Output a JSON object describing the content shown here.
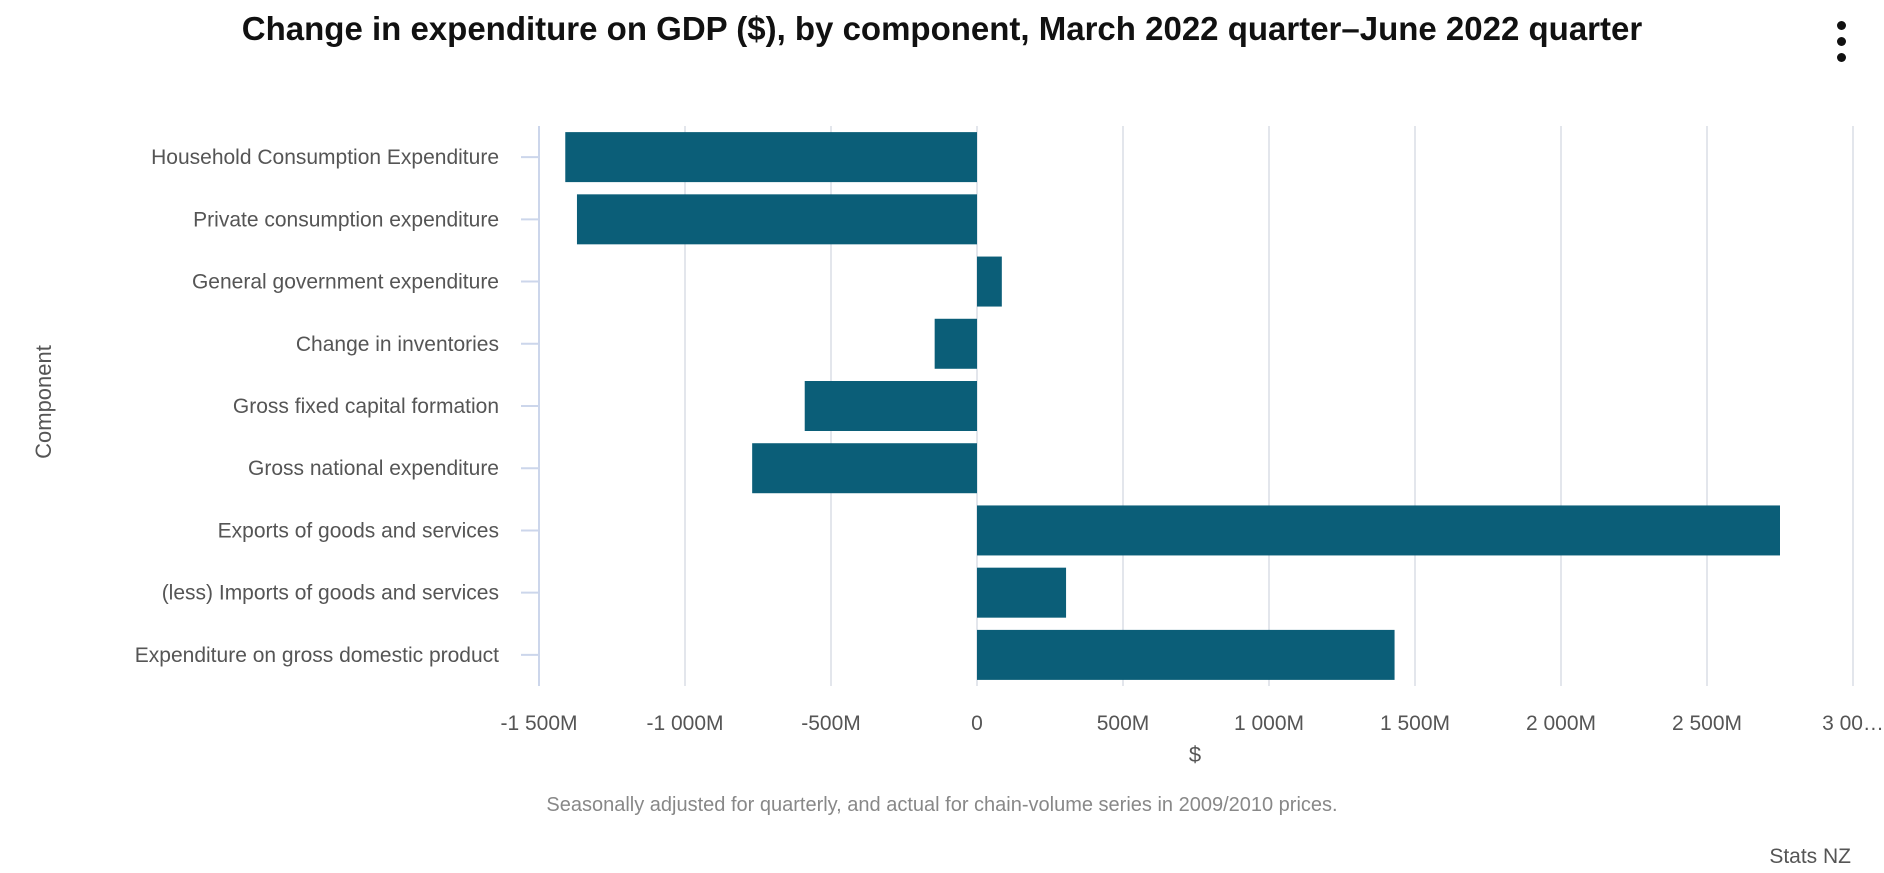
{
  "title": "Change in expenditure on GDP ($), by component, March 2022 quarter–June 2022 quarter",
  "caption": "Seasonally adjusted for quarterly, and actual for chain-volume series in 2009/2010 prices.",
  "credits": "Stats NZ",
  "menu_icon": "vertical-ellipsis-icon",
  "colors": {
    "bar": "#0b5e78",
    "grid": "#e3e6ec",
    "axis_text": "#555555"
  },
  "chart_data": {
    "type": "bar",
    "orientation": "horizontal",
    "title": "Change in expenditure on GDP ($), by component, March 2022 quarter–June 2022 quarter",
    "xlabel": "$",
    "ylabel": "Component",
    "categories": [
      "Household Consumption Expenditure",
      "Private consumption expenditure",
      "General government expenditure",
      "Change in inventories",
      "Gross fixed capital formation",
      "Gross national expenditure",
      "Exports of goods and services",
      "(less) Imports of goods and services",
      "Expenditure on gross domestic product"
    ],
    "values": [
      -1410,
      -1370,
      85,
      -145,
      -590,
      -770,
      2750,
      305,
      1430
    ],
    "unit": "M",
    "xlim": [
      -1500,
      3000
    ],
    "tick_values": [
      -1500,
      -1000,
      -500,
      0,
      500,
      1000,
      1500,
      2000,
      2500,
      3000
    ],
    "tick_labels": [
      "-1 500M",
      "-1 000M",
      "-500M",
      "0",
      "500M",
      "1 000M",
      "1 500M",
      "2 000M",
      "2 500M",
      "3 00…"
    ],
    "grid": true,
    "legend": "none"
  }
}
